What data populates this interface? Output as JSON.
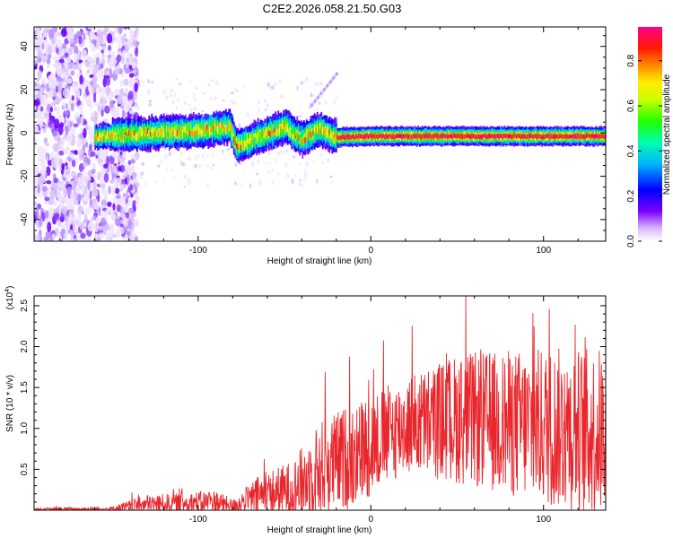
{
  "figure": {
    "title": "C2E2.2026.058.21.50.G03"
  },
  "chart_data": [
    {
      "type": "heatmap",
      "title": "C2E2.2026.058.21.50.G03",
      "xlabel": "Height of straight line (km)",
      "ylabel": "Frequency (Hz)",
      "xlim": [
        -195,
        136
      ],
      "ylim": [
        -50,
        49
      ],
      "x_ticks": [
        -100,
        0,
        100
      ],
      "x_tick_labels": [
        "-100",
        "0",
        "100"
      ],
      "y_ticks": [
        -40,
        -20,
        0,
        20,
        40
      ],
      "y_tick_labels": [
        "-40",
        "-20",
        "0",
        "20",
        "40"
      ],
      "colorbar": {
        "label": "Normalized spectral amplitude",
        "range": [
          0.0,
          0.95
        ],
        "ticks": [
          0.0,
          0.2,
          0.4,
          0.6,
          0.8
        ],
        "tick_labels": [
          "0.0",
          "0.2",
          "0.4",
          "0.6",
          "0.8"
        ],
        "colormap": [
          "#ffffff",
          "#6a00ff",
          "#0000ff",
          "#00ccff",
          "#00ff66",
          "#aaff00",
          "#ffff00",
          "#ff8800",
          "#ff0000",
          "#ff0066"
        ]
      },
      "ridge": {
        "description_free": true,
        "center_hz": [
          {
            "x": -150,
            "hz": -1
          },
          {
            "x": -100,
            "hz": 1
          },
          {
            "x": -82,
            "hz": 3
          },
          {
            "x": -78,
            "hz": -6
          },
          {
            "x": -50,
            "hz": 3
          },
          {
            "x": -40,
            "hz": -3
          },
          {
            "x": -30,
            "hz": 2
          },
          {
            "x": -20,
            "hz": -2
          },
          {
            "x": 0,
            "hz": -1.5
          },
          {
            "x": 136,
            "hz": -1.5
          }
        ]
      }
    },
    {
      "type": "line",
      "xlabel": "Height of straight line (km)",
      "ylabel": "SNR (10 * v/v)",
      "y_multiplier_label": "(x10",
      "y_multiplier_exp": "4",
      "xlim": [
        -195,
        136
      ],
      "ylim": [
        0,
        2.62
      ],
      "x_ticks": [
        -100,
        0,
        100
      ],
      "x_tick_labels": [
        "-100",
        "0",
        "100"
      ],
      "y_ticks": [
        0.5,
        1.0,
        1.5,
        2.0,
        2.5
      ],
      "y_tick_labels": [
        "0.5",
        "1.0",
        "1.5",
        "2.0",
        "2.5"
      ],
      "color": "#e8262b",
      "envelope": [
        {
          "x": -195,
          "base": 0.01,
          "amp": 0.02
        },
        {
          "x": -150,
          "base": 0.02,
          "amp": 0.03
        },
        {
          "x": -130,
          "base": 0.08,
          "amp": 0.12
        },
        {
          "x": -110,
          "base": 0.1,
          "amp": 0.12
        },
        {
          "x": -90,
          "base": 0.12,
          "amp": 0.15
        },
        {
          "x": -80,
          "base": 0.06,
          "amp": 0.08
        },
        {
          "x": -65,
          "base": 0.2,
          "amp": 0.25
        },
        {
          "x": -45,
          "base": 0.3,
          "amp": 0.35
        },
        {
          "x": -30,
          "base": 0.55,
          "amp": 0.6
        },
        {
          "x": -10,
          "base": 0.75,
          "amp": 0.65
        },
        {
          "x": 20,
          "base": 1.1,
          "amp": 0.6
        },
        {
          "x": 50,
          "base": 1.2,
          "amp": 0.8
        },
        {
          "x": 80,
          "base": 1.15,
          "amp": 0.9
        },
        {
          "x": 110,
          "base": 1.1,
          "amp": 1.0
        },
        {
          "x": 136,
          "base": 1.05,
          "amp": 1.05
        }
      ],
      "peak_value": 2.62
    }
  ]
}
